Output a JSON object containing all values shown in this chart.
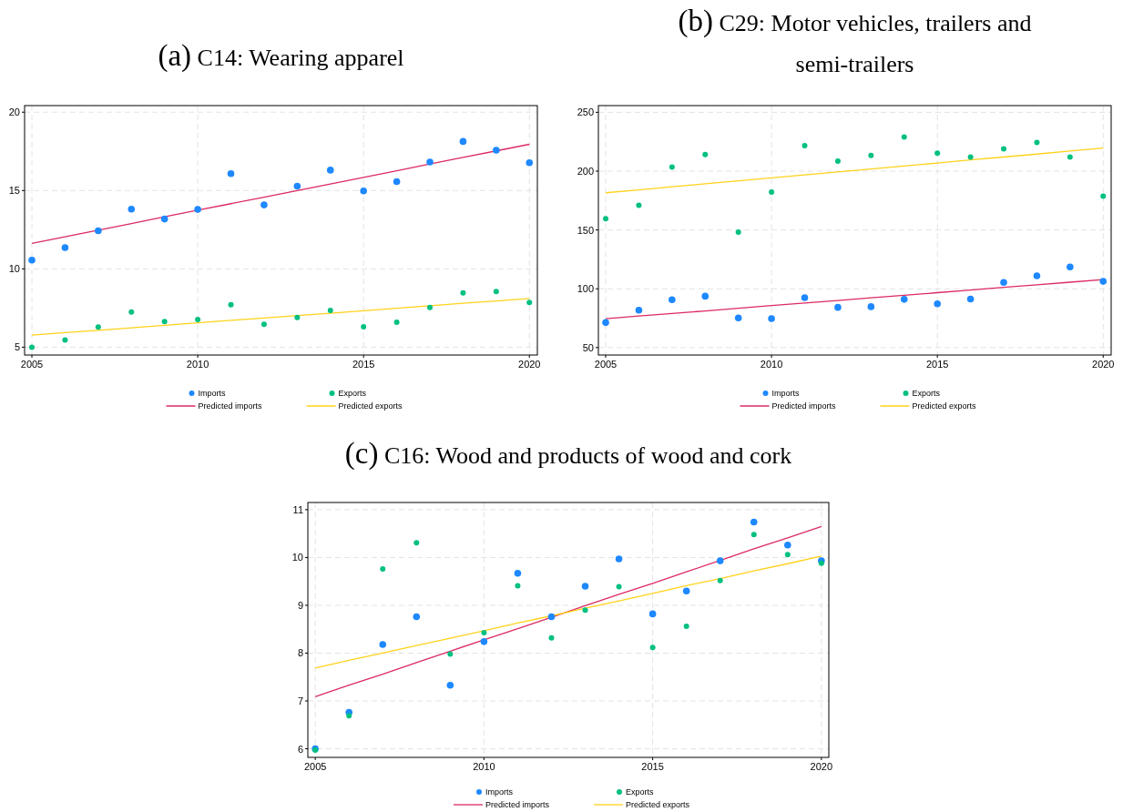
{
  "chart_data": [
    {
      "type": "scatter",
      "title": "(a) C14: Wearing apparel",
      "x": [
        2005,
        2006,
        2007,
        2008,
        2009,
        2010,
        2011,
        2012,
        2013,
        2014,
        2015,
        2016,
        2017,
        2018,
        2019,
        2020
      ],
      "xlim": [
        2004.78,
        2020.24
      ],
      "xticks": [
        2005,
        2010,
        2015,
        2020
      ],
      "ylim": [
        4.5,
        20.42
      ],
      "yticks": [
        5,
        10,
        15,
        20
      ],
      "grid": true,
      "legend": "bottom",
      "series": [
        {
          "name": "Imports",
          "color": "#1e88ff",
          "marker": "circle",
          "values": [
            10.56,
            11.36,
            12.43,
            13.81,
            13.18,
            13.79,
            16.08,
            14.08,
            15.28,
            16.3,
            14.97,
            15.57,
            16.82,
            18.13,
            17.57,
            16.77
          ]
        },
        {
          "name": "Exports",
          "color": "#00c07f",
          "marker": "circle",
          "values": [
            4.99,
            5.46,
            6.28,
            7.24,
            6.64,
            6.77,
            7.71,
            6.46,
            6.9,
            7.35,
            6.3,
            6.59,
            7.53,
            8.46,
            8.55,
            7.86
          ]
        },
        {
          "name": "Predicted imports",
          "type": "line",
          "color": "#dc2a63",
          "values": [
            11.63,
            12.05,
            12.47,
            12.89,
            13.32,
            13.74,
            14.16,
            14.58,
            15.0,
            15.42,
            15.84,
            16.26,
            16.69,
            17.11,
            17.53,
            17.95
          ]
        },
        {
          "name": "Predicted exports",
          "type": "line",
          "color": "#ffd21a",
          "values": [
            5.77,
            5.93,
            6.08,
            6.24,
            6.39,
            6.55,
            6.71,
            6.86,
            7.02,
            7.17,
            7.33,
            7.49,
            7.64,
            7.8,
            7.95,
            8.11
          ]
        }
      ]
    },
    {
      "type": "scatter",
      "title": "(b) C29: Motor vehicles, trailers and semi-trailers",
      "x": [
        2005,
        2006,
        2007,
        2008,
        2009,
        2010,
        2011,
        2012,
        2013,
        2014,
        2015,
        2016,
        2017,
        2018,
        2019,
        2020
      ],
      "xlim": [
        2004.78,
        2020.24
      ],
      "xticks": [
        2005,
        2010,
        2015,
        2020
      ],
      "ylim": [
        43.7,
        255.7
      ],
      "yticks": [
        50,
        100,
        150,
        200,
        250
      ],
      "grid": true,
      "legend": "bottom",
      "series": [
        {
          "name": "Imports",
          "color": "#1e88ff",
          "marker": "circle",
          "values": [
            71.3,
            81.8,
            90.7,
            93.7,
            75.2,
            74.6,
            92.5,
            84.2,
            84.8,
            91,
            87.2,
            91.3,
            105.4,
            111,
            118.5,
            106.3
          ]
        },
        {
          "name": "Exports",
          "color": "#00c07f",
          "marker": "circle",
          "values": [
            159.6,
            171,
            203.4,
            214.2,
            148.2,
            182.1,
            221.6,
            208.5,
            213.3,
            229.1,
            215.2,
            211.9,
            219,
            224.4,
            211.9,
            178.8
          ]
        },
        {
          "name": "Predicted imports",
          "type": "line",
          "color": "#dc2a63",
          "values": [
            74.6,
            76.8,
            79.0,
            81.2,
            83.5,
            85.7,
            87.9,
            90.1,
            92.3,
            94.5,
            96.7,
            98.9,
            101.2,
            103.4,
            105.6,
            107.8
          ]
        },
        {
          "name": "Predicted exports",
          "type": "line",
          "color": "#ffd21a",
          "values": [
            181.6,
            184.1,
            186.7,
            189.2,
            191.7,
            194.3,
            196.8,
            199.3,
            201.9,
            204.4,
            206.9,
            209.5,
            212.0,
            214.5,
            217.1,
            219.6
          ]
        }
      ]
    },
    {
      "type": "scatter",
      "title": "(c) C16: Wood and products of wood and cork",
      "x": [
        2005,
        2006,
        2007,
        2008,
        2009,
        2010,
        2011,
        2012,
        2013,
        2014,
        2015,
        2016,
        2017,
        2018,
        2019,
        2020
      ],
      "xlim": [
        2004.78,
        2020.22
      ],
      "xticks": [
        2005,
        2010,
        2015,
        2020
      ],
      "ylim": [
        5.82,
        11.15
      ],
      "yticks": [
        6,
        7,
        8,
        9,
        10,
        11
      ],
      "grid": true,
      "legend": "bottom",
      "series": [
        {
          "name": "Imports",
          "color": "#1e88ff",
          "marker": "circle",
          "values": [
            6.0,
            6.76,
            8.18,
            8.76,
            7.33,
            8.24,
            9.67,
            8.76,
            9.4,
            9.97,
            8.82,
            9.3,
            9.93,
            10.74,
            10.26,
            9.93
          ]
        },
        {
          "name": "Exports",
          "color": "#00c07f",
          "marker": "circle",
          "values": [
            5.97,
            6.69,
            9.76,
            10.31,
            7.98,
            8.43,
            9.41,
            8.32,
            8.9,
            9.39,
            8.12,
            8.56,
            9.52,
            10.48,
            10.06,
            9.88
          ]
        },
        {
          "name": "Predicted imports",
          "type": "line",
          "color": "#dc2a63",
          "values": [
            7.09,
            7.33,
            7.56,
            7.8,
            8.04,
            8.28,
            8.51,
            8.75,
            8.99,
            9.23,
            9.46,
            9.7,
            9.94,
            10.18,
            10.41,
            10.65
          ]
        },
        {
          "name": "Predicted exports",
          "type": "line",
          "color": "#ffd21a",
          "values": [
            7.69,
            7.85,
            8.0,
            8.16,
            8.31,
            8.47,
            8.63,
            8.78,
            8.94,
            9.09,
            9.25,
            9.41,
            9.56,
            9.72,
            9.87,
            10.03
          ]
        }
      ]
    }
  ]
}
